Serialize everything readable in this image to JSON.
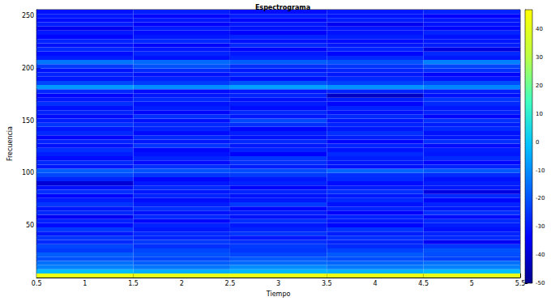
{
  "chart_data": {
    "type": "heatmap",
    "title": "Espectrograma",
    "xlabel": "Tiempo",
    "ylabel": "Frecuencia",
    "x": [
      1,
      2,
      3,
      4,
      5
    ],
    "y": [
      2,
      6,
      10,
      14,
      18,
      22,
      26,
      30,
      34,
      38,
      42,
      46,
      50,
      54,
      58,
      62,
      66,
      70,
      74,
      78,
      82,
      86,
      90,
      94,
      98,
      102,
      106,
      110,
      114,
      118,
      122,
      126,
      130,
      134,
      138,
      142,
      146,
      150,
      154,
      158,
      162,
      166,
      170,
      174,
      178,
      182,
      186,
      190,
      194,
      198,
      202,
      206,
      210,
      214,
      218,
      222,
      226,
      230,
      234,
      238,
      242,
      246,
      250,
      254
    ],
    "cells": [
      [
        42,
        41,
        42,
        42,
        41
      ],
      [
        -2,
        -5,
        -3,
        -4,
        -2
      ],
      [
        -12,
        -14,
        -10,
        -13,
        -12
      ],
      [
        -15,
        -18,
        -16,
        -17,
        -15
      ],
      [
        -20,
        -22,
        -19,
        -21,
        -23
      ],
      [
        -18,
        -20,
        -22,
        -19,
        -21
      ],
      [
        -24,
        -22,
        -25,
        -23,
        -20
      ],
      [
        -22,
        -26,
        -24,
        -27,
        -25
      ],
      [
        -27,
        -24,
        -26,
        -28,
        -35
      ],
      [
        -25,
        -28,
        -30,
        -26,
        -27
      ],
      [
        -30,
        -27,
        -25,
        -29,
        -28
      ],
      [
        -24,
        -30,
        -28,
        -25,
        -31
      ],
      [
        -32,
        -28,
        -30,
        -33,
        -29
      ],
      [
        -28,
        -33,
        -26,
        -30,
        -27
      ],
      [
        -35,
        -27,
        -31,
        -28,
        -32
      ],
      [
        -27,
        -31,
        -29,
        -34,
        -26
      ],
      [
        -30,
        -26,
        -33,
        -28,
        -30
      ],
      [
        -25,
        -29,
        -24,
        -31,
        -28
      ],
      [
        -29,
        -32,
        -30,
        -27,
        -33
      ],
      [
        -33,
        -28,
        -31,
        -30,
        -27
      ],
      [
        -26,
        -30,
        -28,
        -26,
        -38
      ],
      [
        -31,
        -27,
        -33,
        -29,
        -30
      ],
      [
        -40,
        -30,
        -28,
        -32,
        -29
      ],
      [
        -28,
        -33,
        -30,
        -27,
        -31
      ],
      [
        -22,
        -25,
        -24,
        -26,
        -27
      ],
      [
        -18,
        -20,
        -21,
        -17,
        -19
      ],
      [
        -30,
        -26,
        -29,
        -31,
        -28
      ],
      [
        -27,
        -32,
        -26,
        -30,
        -33
      ],
      [
        -32,
        -28,
        -25,
        -29,
        -27
      ],
      [
        -29,
        -31,
        -34,
        -27,
        -30
      ],
      [
        -26,
        -33,
        -28,
        -31,
        -29
      ],
      [
        -31,
        -25,
        -30,
        -28,
        -32
      ],
      [
        -28,
        -30,
        -27,
        -33,
        -26
      ],
      [
        -33,
        -27,
        -31,
        -29,
        -30
      ],
      [
        -27,
        -32,
        -29,
        -26,
        -31
      ],
      [
        -30,
        -28,
        -33,
        -30,
        -27
      ],
      [
        -25,
        -27,
        -26,
        -28,
        -29
      ],
      [
        -29,
        -31,
        -22,
        -30,
        -26
      ],
      [
        -32,
        -26,
        -30,
        -27,
        -33
      ],
      [
        -28,
        -33,
        -27,
        -31,
        -28
      ],
      [
        -31,
        -29,
        -32,
        -28,
        -30
      ],
      [
        -26,
        -31,
        -29,
        -33,
        -27
      ],
      [
        -30,
        -27,
        -31,
        -29,
        -25
      ],
      [
        -33,
        -30,
        -28,
        -42,
        -31
      ],
      [
        -27,
        -32,
        -30,
        -28,
        -29
      ],
      [
        -8,
        -10,
        -7,
        -9,
        -11
      ],
      [
        -22,
        -24,
        -20,
        -23,
        -21
      ],
      [
        -30,
        -28,
        -31,
        -27,
        -30
      ],
      [
        -28,
        -31,
        -27,
        -30,
        -33
      ],
      [
        -31,
        -27,
        -30,
        -28,
        -26
      ],
      [
        -24,
        -20,
        -26,
        -25,
        -22
      ],
      [
        -14,
        -16,
        -18,
        -20,
        -12
      ],
      [
        -29,
        -31,
        -28,
        -27,
        -30
      ],
      [
        -32,
        -28,
        -30,
        -33,
        -27
      ],
      [
        -27,
        -30,
        -33,
        -28,
        -38
      ],
      [
        -31,
        -33,
        -27,
        -30,
        -29
      ],
      [
        -28,
        -27,
        -31,
        -32,
        -30
      ],
      [
        -33,
        -30,
        -28,
        -29,
        -31
      ],
      [
        -30,
        -32,
        -34,
        -31,
        -28
      ],
      [
        -36,
        -29,
        -31,
        -30,
        -33
      ],
      [
        -29,
        -34,
        -30,
        -36,
        -31
      ],
      [
        -32,
        -30,
        -33,
        -29,
        -30
      ],
      [
        -30,
        -33,
        -29,
        -31,
        -34
      ],
      [
        -31,
        -29,
        -32,
        -30,
        -28
      ]
    ],
    "xlim": [
      0.5,
      5.5
    ],
    "xticks": [
      0.5,
      1,
      1.5,
      2,
      2.5,
      3,
      3.5,
      4,
      4.5,
      5,
      5.5
    ],
    "ylim": [
      0,
      256
    ],
    "yticks": [
      50,
      100,
      150,
      200,
      250
    ],
    "grid": false,
    "color_range": [
      -50,
      47
    ],
    "color_ticks": [
      -50,
      -40,
      -30,
      -20,
      -10,
      0,
      10,
      20,
      30,
      40
    ]
  }
}
